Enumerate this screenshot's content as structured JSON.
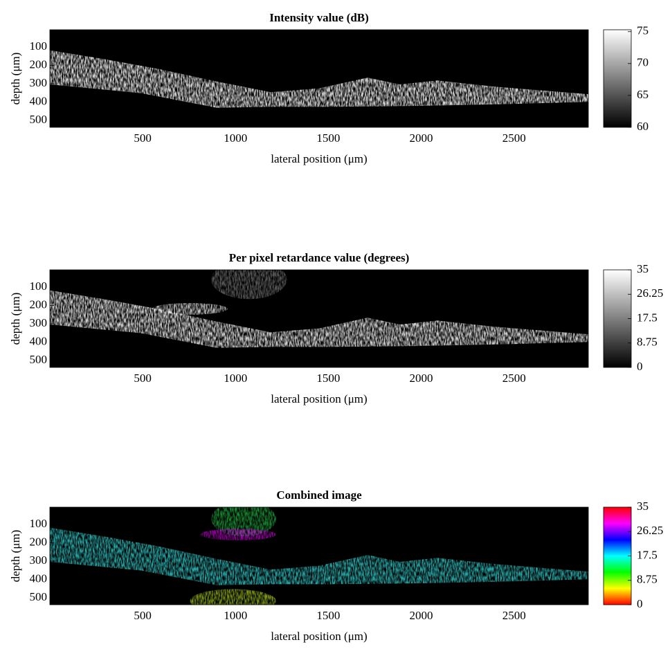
{
  "chart_data": [
    {
      "type": "heatmap",
      "title": "Intensity value (dB)",
      "xlabel": "lateral position (μm)",
      "ylabel": "depth (μm)",
      "xlim": [
        0,
        2900
      ],
      "ylim": [
        538,
        6
      ],
      "xticks": [
        500,
        1000,
        1500,
        2000,
        2500
      ],
      "yticks": [
        100,
        200,
        300,
        400,
        500
      ],
      "colorbar": {
        "colors": [
          "#000000",
          "#ffffff"
        ],
        "clim": [
          60,
          75.3
        ],
        "ticks": [
          60,
          65,
          70,
          75
        ]
      }
    },
    {
      "type": "heatmap",
      "title": "Per pixel retardance value (degrees)",
      "xlabel": "lateral position (μm)",
      "ylabel": "depth (μm)",
      "xlim": [
        0,
        2900
      ],
      "ylim": [
        538,
        6
      ],
      "xticks": [
        500,
        1000,
        1500,
        2000,
        2500
      ],
      "yticks": [
        100,
        200,
        300,
        400,
        500
      ],
      "colorbar": {
        "colors": [
          "#000000",
          "#ffffff"
        ],
        "clim": [
          0,
          35
        ],
        "ticks": [
          0,
          8.75,
          17.5,
          26.25,
          35
        ]
      }
    },
    {
      "type": "heatmap",
      "title": "Combined image",
      "xlabel": "lateral position (μm)",
      "ylabel": "depth (μm)",
      "xlim": [
        0,
        2900
      ],
      "ylim": [
        538,
        6
      ],
      "xticks": [
        500,
        1000,
        1500,
        2000,
        2500
      ],
      "yticks": [
        100,
        200,
        300,
        400,
        500
      ],
      "colorbar": {
        "colors": [
          "#ff0000",
          "#ffff00",
          "#00ff00",
          "#00ffff",
          "#0000ff",
          "#ff00ff",
          "#ff0000"
        ],
        "clim": [
          0,
          35
        ],
        "ticks": [
          0,
          8.75,
          17.5,
          26.25,
          35
        ]
      }
    }
  ]
}
